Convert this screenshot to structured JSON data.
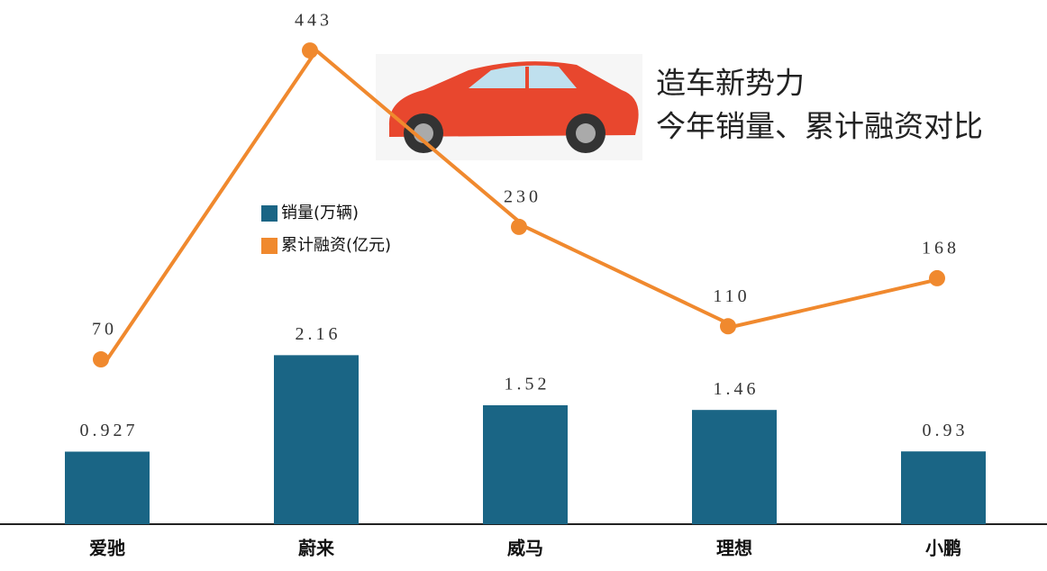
{
  "chart_data": {
    "type": "bar",
    "title": "造车新势力",
    "subtitle": "今年销量、累计融资对比",
    "categories": [
      "爱驰",
      "蔚来",
      "威马",
      "理想",
      "小鹏"
    ],
    "series": [
      {
        "name": "销量(万辆)",
        "type": "bar",
        "color": "#1a6585",
        "values": [
          0.927,
          2.16,
          1.52,
          1.46,
          0.93
        ]
      },
      {
        "name": "累计融资(亿元)",
        "type": "line",
        "axis": "y2",
        "color": "#f0892e",
        "values": [
          70,
          443,
          230,
          110,
          168
        ]
      }
    ],
    "ylim": [
      0,
      6.7
    ],
    "y2lim": [
      -129,
      504
    ],
    "grid": false
  }
}
